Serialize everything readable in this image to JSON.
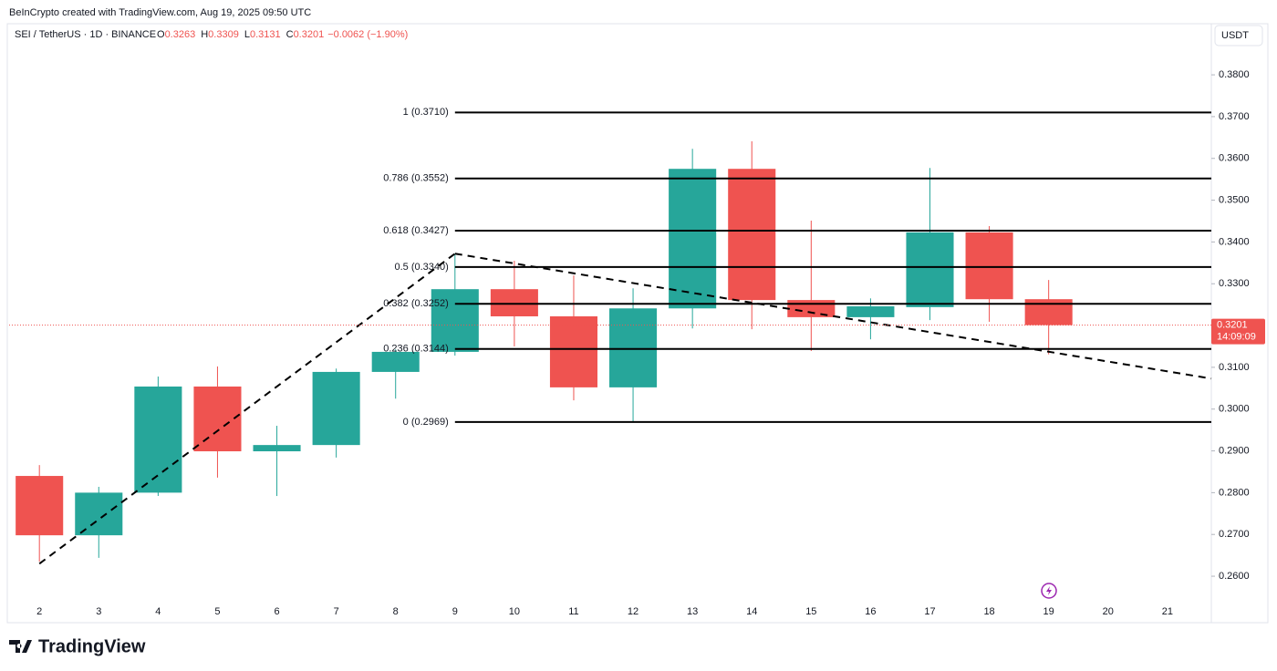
{
  "header": {
    "credit": "BeInCrypto created with TradingView.com, Aug 19, 2025 09:50 UTC",
    "logo": "TradingView"
  },
  "chart_data": {
    "type": "candlestick",
    "symbol": "SEI / TetherUS · 1D · BINANCE",
    "legend_values": [
      {
        "key": "O",
        "value": "0.3263"
      },
      {
        "key": "H",
        "value": "0.3309"
      },
      {
        "key": "L",
        "value": "0.3131"
      },
      {
        "key": "C",
        "value": "0.3201"
      }
    ],
    "change": "−0.0062 (−1.90%)",
    "currency": "USDT",
    "up_color": "#26a69a",
    "down_color": "#ef5350",
    "x": [
      2,
      3,
      4,
      5,
      6,
      7,
      8,
      9,
      10,
      11,
      12,
      13,
      14,
      15,
      16,
      17,
      18,
      19
    ],
    "open": [
      0.284,
      0.2698,
      0.28,
      0.3054,
      0.2899,
      0.2914,
      0.3089,
      0.3137,
      0.3287,
      0.3222,
      0.3052,
      0.3241,
      0.3575,
      0.3261,
      0.322,
      0.3244,
      0.3423,
      0.3263
    ],
    "high": [
      0.2866,
      0.2814,
      0.3078,
      0.3102,
      0.296,
      0.3097,
      0.3143,
      0.3372,
      0.3355,
      0.332,
      0.3289,
      0.3623,
      0.3641,
      0.3451,
      0.3265,
      0.3577,
      0.3438,
      0.3309
    ],
    "low": [
      0.2635,
      0.2644,
      0.2792,
      0.2836,
      0.2792,
      0.2884,
      0.3025,
      0.3128,
      0.315,
      0.3021,
      0.2971,
      0.3193,
      0.3191,
      0.3139,
      0.3167,
      0.3213,
      0.3209,
      0.3131
    ],
    "close": [
      0.2698,
      0.28,
      0.3054,
      0.2899,
      0.2914,
      0.3089,
      0.3137,
      0.3287,
      0.3222,
      0.3052,
      0.3241,
      0.3575,
      0.3261,
      0.322,
      0.3246,
      0.3423,
      0.3263,
      0.3201
    ],
    "xlim": [
      1.49,
      21.74
    ],
    "xticks": [
      2,
      3,
      4,
      5,
      6,
      7,
      8,
      9,
      10,
      11,
      12,
      13,
      14,
      15,
      16,
      17,
      18,
      19,
      20,
      21
    ],
    "ylim": [
      0.2539,
      0.387
    ],
    "yticks": [
      {
        "value": 0.26,
        "label": "0.2600"
      },
      {
        "value": 0.27,
        "label": "0.2700"
      },
      {
        "value": 0.28,
        "label": "0.2800"
      },
      {
        "value": 0.29,
        "label": "0.2900"
      },
      {
        "value": 0.3,
        "label": "0.3000"
      },
      {
        "value": 0.31,
        "label": "0.3100"
      },
      {
        "value": 0.32,
        "label": "0.3200"
      },
      {
        "value": 0.33,
        "label": "0.3300"
      },
      {
        "value": 0.34,
        "label": "0.3400"
      },
      {
        "value": 0.35,
        "label": "0.3500"
      },
      {
        "value": 0.36,
        "label": "0.3600"
      },
      {
        "value": 0.37,
        "label": "0.3700"
      },
      {
        "value": 0.38,
        "label": "0.3800"
      }
    ],
    "fib_levels": [
      {
        "value": 0.371,
        "label": "1 (0.3710)"
      },
      {
        "value": 0.3552,
        "label": "0.786 (0.3552)"
      },
      {
        "value": 0.3427,
        "label": "0.618 (0.3427)"
      },
      {
        "value": 0.334,
        "label": "0.5 (0.3340)"
      },
      {
        "value": 0.3252,
        "label": "0.382 (0.3252)"
      },
      {
        "value": 0.3144,
        "label": "0.236 (0.3144)"
      },
      {
        "value": 0.2969,
        "label": "0 (0.2969)"
      }
    ],
    "fib_start_x": 9,
    "trendlines": [
      {
        "x": [
          2,
          9
        ],
        "y": [
          0.263,
          0.3372
        ]
      },
      {
        "x": [
          9,
          21.74
        ],
        "y": [
          0.3372,
          0.3073
        ]
      }
    ],
    "last_price": 0.3201,
    "countdown": "14:09:09"
  }
}
